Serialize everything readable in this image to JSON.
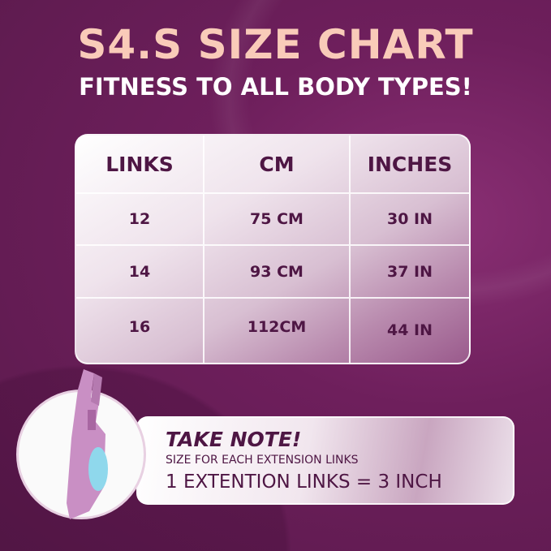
{
  "header": {
    "title": "S4.S SIZE CHART",
    "subtitle": "FITNESS TO ALL BODY TYPES!"
  },
  "size_table": {
    "columns": [
      "LINKS",
      "CM",
      "INCHES"
    ],
    "rows": [
      [
        "12",
        "75 CM",
        "30 IN"
      ],
      [
        "14",
        "93 CM",
        "37 IN"
      ],
      [
        "16",
        "112CM",
        "44 IN"
      ]
    ]
  },
  "note": {
    "title": "TAKE NOTE!",
    "subtitle": "SIZE FOR EACH EXTENSION LINKS",
    "equation": "1 EXTENTION LINKS = 3 INCH"
  },
  "colors": {
    "background": "#6e1f5c",
    "title": "#f9cbb9",
    "text_dark": "#4e1644",
    "product_link": "#c98fc4",
    "product_button": "#8fd8ec"
  }
}
